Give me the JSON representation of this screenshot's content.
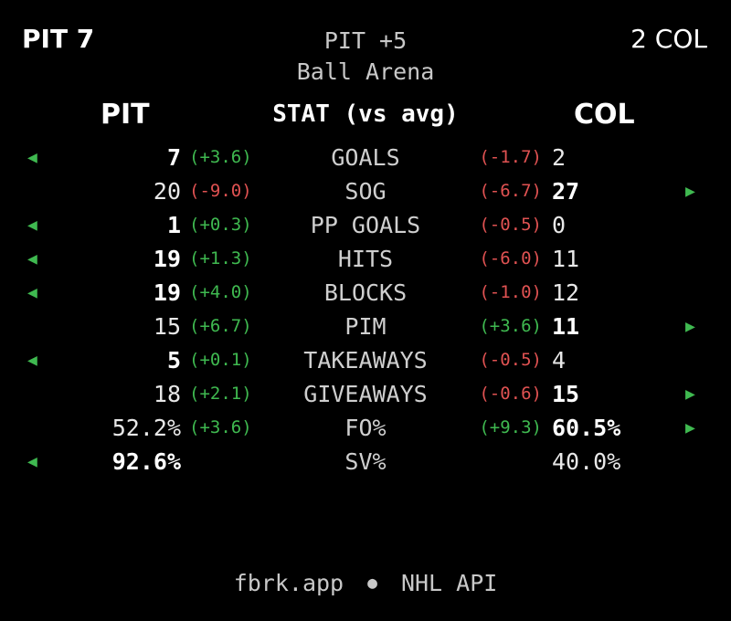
{
  "header": {
    "left_score": "PIT 7",
    "right_score": "2 COL",
    "spread": "PIT +5",
    "venue": "Ball Arena"
  },
  "columns": {
    "left": "PIT",
    "middle": "STAT (vs avg)",
    "right": "COL"
  },
  "arrow_glyphs": {
    "left": "◀",
    "right": "▶"
  },
  "colors": {
    "positive": "#3fb950",
    "negative": "#e05252",
    "background": "#000000"
  },
  "rows": [
    {
      "label": "GOALS",
      "pit": "7",
      "pit_delta": "(+3.6)",
      "col": "2",
      "col_delta": "(-1.7)",
      "leader": "pit"
    },
    {
      "label": "SOG",
      "pit": "20",
      "pit_delta": "(-9.0)",
      "col": "27",
      "col_delta": "(-6.7)",
      "leader": "col"
    },
    {
      "label": "PP GOALS",
      "pit": "1",
      "pit_delta": "(+0.3)",
      "col": "0",
      "col_delta": "(-0.5)",
      "leader": "pit"
    },
    {
      "label": "HITS",
      "pit": "19",
      "pit_delta": "(+1.3)",
      "col": "11",
      "col_delta": "(-6.0)",
      "leader": "pit"
    },
    {
      "label": "BLOCKS",
      "pit": "19",
      "pit_delta": "(+4.0)",
      "col": "12",
      "col_delta": "(-1.0)",
      "leader": "pit"
    },
    {
      "label": "PIM",
      "pit": "15",
      "pit_delta": "(+6.7)",
      "col": "11",
      "col_delta": "(+3.6)",
      "leader": "col"
    },
    {
      "label": "TAKEAWAYS",
      "pit": "5",
      "pit_delta": "(+0.1)",
      "col": "4",
      "col_delta": "(-0.5)",
      "leader": "pit"
    },
    {
      "label": "GIVEAWAYS",
      "pit": "18",
      "pit_delta": "(+2.1)",
      "col": "15",
      "col_delta": "(-0.6)",
      "leader": "col"
    },
    {
      "label": "FO%",
      "pit": "52.2%",
      "pit_delta": "(+3.6)",
      "col": "60.5%",
      "col_delta": "(+9.3)",
      "leader": "col"
    },
    {
      "label": "SV%",
      "pit": "92.6%",
      "pit_delta": "",
      "col": "40.0%",
      "col_delta": "",
      "leader": "pit"
    }
  ],
  "footer": {
    "site": "fbrk.app",
    "separator": "●",
    "source": "NHL API"
  }
}
